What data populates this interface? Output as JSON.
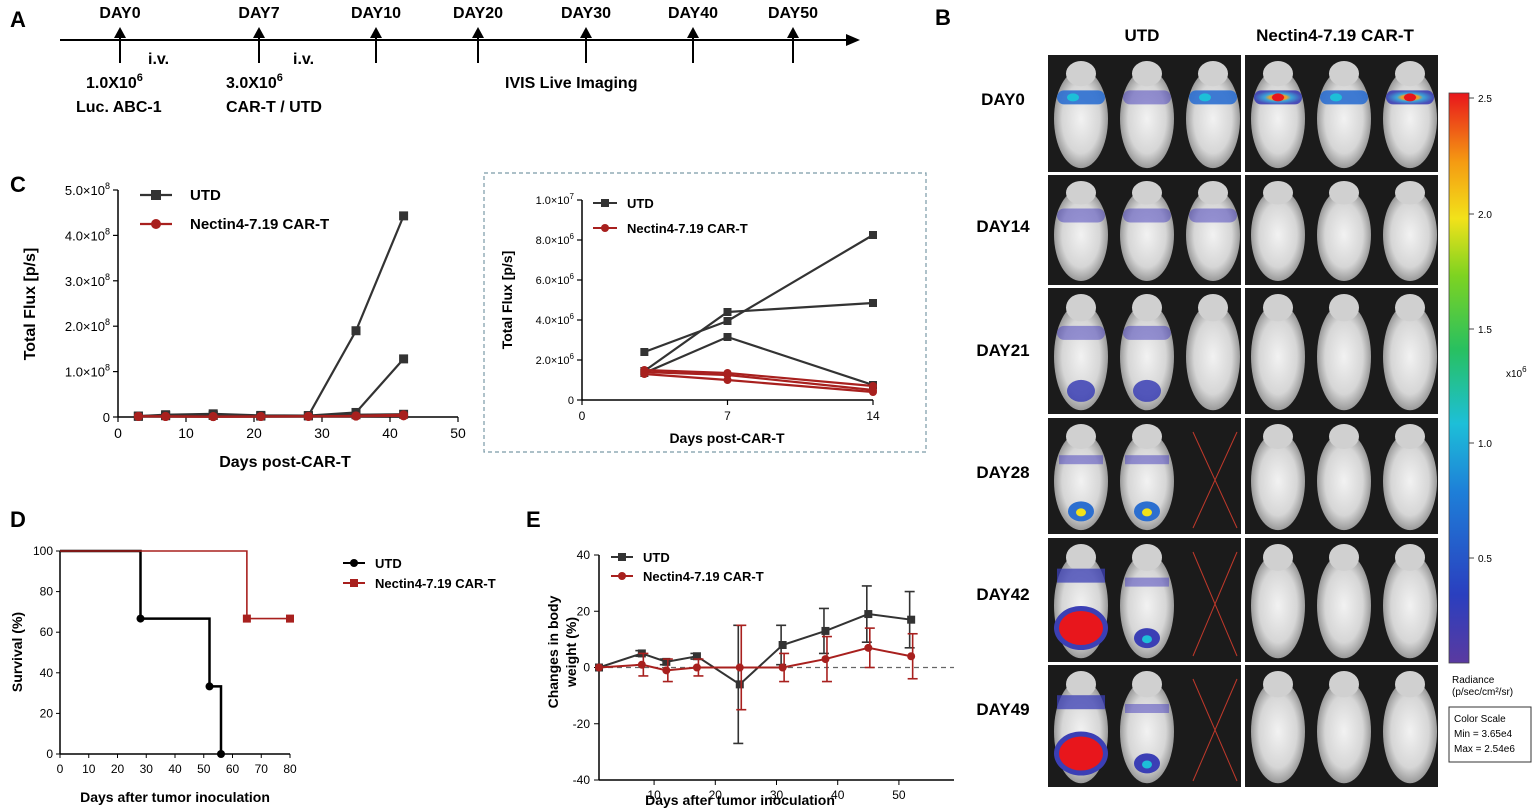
{
  "panel_labels": {
    "a": "A",
    "b": "B",
    "c": "C",
    "d": "D",
    "e": "E"
  },
  "timeline": {
    "days": [
      "DAY0",
      "DAY7",
      "DAY10",
      "DAY20",
      "DAY30",
      "DAY40",
      "DAY50"
    ],
    "iv1": "i.v.",
    "iv2": "i.v.",
    "dose1_num": "1.0X10",
    "dose1_exp": "6",
    "dose1_label": "Luc.  ABC-1",
    "dose2_num": "3.0X10",
    "dose2_exp": "6",
    "dose2_label": "CAR-T / UTD",
    "imaging": "IVIS Live Imaging"
  },
  "imaging_panel": {
    "group_utd": "UTD",
    "group_car": "Nectin4-7.19 CAR-T",
    "days": [
      "DAY0",
      "DAY14",
      "DAY21",
      "DAY28",
      "DAY42",
      "DAY49"
    ],
    "colorbar_ticks": [
      "2.5",
      "2.0",
      "1.5",
      "1.0",
      "0.5"
    ],
    "colorbar_unit": "x10",
    "colorbar_unit_exp": "6",
    "radiance_label": "Radiance",
    "radiance_unit": "(p/sec/cm²/sr)",
    "scale_title": "Color Scale",
    "scale_min": "Min = 3.65e4",
    "scale_max": "Max = 2.54e6"
  },
  "chart_data": [
    {
      "id": "C-main",
      "type": "line",
      "ylabel": "Total Flux [p/s]",
      "xlabel": "Days post-CAR-T",
      "xlim": [
        0,
        50
      ],
      "ylim": [
        0,
        500000000
      ],
      "xticks": [
        "0",
        "10",
        "20",
        "30",
        "40",
        "50"
      ],
      "yticks": [
        "0",
        "1.0×10",
        "2.0×10",
        "3.0×10",
        "4.0×10",
        "5.0×10"
      ],
      "ytick_exp": "8",
      "legend": [
        "UTD",
        "Nectin4-7.19 CAR-T"
      ],
      "series": [
        {
          "name": "UTD",
          "group": "UTD",
          "x": [
            3,
            7,
            14,
            21,
            28,
            35,
            42
          ],
          "y": [
            2000000,
            3000000,
            4000000,
            2500000,
            3000000,
            190000000,
            443000000
          ]
        },
        {
          "name": "UTD",
          "group": "UTD",
          "x": [
            3,
            7,
            14,
            21,
            28,
            35,
            42
          ],
          "y": [
            2000000,
            5000000,
            7000000,
            3500000,
            3000000,
            10000000,
            128000000
          ]
        },
        {
          "name": "UTD",
          "group": "UTD",
          "x": [
            3,
            7,
            14,
            21,
            28,
            35,
            42
          ],
          "y": [
            1500000,
            3000000,
            3500000,
            2000000,
            2500000,
            5000000,
            6000000
          ]
        },
        {
          "name": "Nectin4-7.19 CAR-T",
          "group": "CAR",
          "x": [
            3,
            7,
            14,
            21,
            28,
            35,
            42
          ],
          "y": [
            1300000,
            1200000,
            1000000,
            1200000,
            1500000,
            2500000,
            5000000
          ]
        },
        {
          "name": "Nectin4-7.19 CAR-T",
          "group": "CAR",
          "x": [
            3,
            7,
            14,
            21,
            28,
            35,
            42
          ],
          "y": [
            1200000,
            1000000,
            800000,
            1000000,
            1300000,
            2000000,
            3000000
          ]
        },
        {
          "name": "Nectin4-7.19 CAR-T",
          "group": "CAR",
          "x": [
            3,
            7,
            14,
            21,
            28,
            35,
            42
          ],
          "y": [
            1400000,
            1300000,
            900000,
            1100000,
            1200000,
            1800000,
            2500000
          ]
        }
      ]
    },
    {
      "id": "C-inset",
      "type": "line",
      "ylabel": "Total Flux [p/s]",
      "xlabel": "Days post-CAR-T",
      "xlim": [
        0,
        14
      ],
      "ylim": [
        0,
        10000000
      ],
      "xticks": [
        "0",
        "7",
        "14"
      ],
      "xtick_values": [
        0,
        7,
        14
      ],
      "yticks": [
        "0",
        "2.0×10",
        "4.0×10",
        "6.0×10",
        "8.0×10",
        "1.0×10"
      ],
      "ytick_exps": [
        "",
        "6",
        "6",
        "6",
        "6",
        "7"
      ],
      "legend": [
        "UTD",
        "Nectin4-7.19 CAR-T"
      ],
      "series": [
        {
          "name": "UTD",
          "group": "UTD",
          "x": [
            3,
            7,
            14
          ],
          "y": [
            2400000,
            3950000,
            8250000
          ]
        },
        {
          "name": "UTD",
          "group": "UTD",
          "x": [
            3,
            7,
            14
          ],
          "y": [
            1450000,
            4400000,
            4850000
          ]
        },
        {
          "name": "UTD",
          "group": "UTD",
          "x": [
            3,
            7,
            14
          ],
          "y": [
            1350000,
            3150000,
            750000
          ]
        },
        {
          "name": "Nectin4-7.19 CAR-T",
          "group": "CAR",
          "x": [
            3,
            7,
            14
          ],
          "y": [
            1500000,
            1350000,
            700000
          ]
        },
        {
          "name": "Nectin4-7.19 CAR-T",
          "group": "CAR",
          "x": [
            3,
            7,
            14
          ],
          "y": [
            1400000,
            1250000,
            500000
          ]
        },
        {
          "name": "Nectin4-7.19 CAR-T",
          "group": "CAR",
          "x": [
            3,
            7,
            14
          ],
          "y": [
            1300000,
            1000000,
            400000
          ]
        }
      ]
    },
    {
      "id": "D",
      "type": "step",
      "ylabel": "Survival (%)",
      "xlabel": "Days after tumor inoculation",
      "xlim": [
        0,
        80
      ],
      "ylim": [
        0,
        100
      ],
      "xticks": [
        "0",
        "10",
        "20",
        "30",
        "40",
        "50",
        "60",
        "70",
        "80"
      ],
      "yticks": [
        "0",
        "20",
        "40",
        "60",
        "80",
        "100"
      ],
      "legend": [
        "UTD",
        "Nectin4-7.19 CAR-T"
      ],
      "series": [
        {
          "name": "UTD",
          "x": [
            0,
            28,
            52,
            56
          ],
          "y": [
            100,
            66.7,
            33.3,
            0
          ],
          "markers": [
            [
              28,
              66.7
            ],
            [
              52,
              33.3
            ],
            [
              56,
              0
            ]
          ]
        },
        {
          "name": "Nectin4-7.19 CAR-T",
          "x": [
            0,
            65,
            80
          ],
          "y": [
            100,
            66.7,
            66.7
          ],
          "markers": [
            [
              65,
              66.7
            ],
            [
              80,
              66.7
            ]
          ]
        }
      ]
    },
    {
      "id": "E",
      "type": "line-errorbar",
      "ylabel": "Changes in body weight (%)",
      "xlabel": "Days after tumor inoculation",
      "xlim": [
        1,
        59
      ],
      "ylim": [
        -40,
        40
      ],
      "xticks": [
        "10",
        "20",
        "30",
        "40",
        "50"
      ],
      "yticks": [
        "-40",
        "-20",
        "0",
        "20",
        "40"
      ],
      "legend": [
        "UTD",
        "Nectin4-7.19 CAR-T"
      ],
      "series": [
        {
          "name": "UTD",
          "x": [
            1,
            8,
            12,
            17,
            24,
            31,
            38,
            45,
            52
          ],
          "y": [
            0,
            5,
            2,
            4,
            -6,
            8,
            13,
            19,
            17
          ],
          "err": [
            0,
            1,
            1,
            1,
            21,
            7,
            8,
            10,
            10
          ]
        },
        {
          "name": "Nectin4-7.19 CAR-T",
          "x": [
            1,
            8,
            12,
            17,
            24,
            31,
            38,
            45,
            52
          ],
          "y": [
            0,
            1,
            -1,
            0,
            0,
            0,
            3,
            7,
            4
          ],
          "err": [
            0,
            4,
            4,
            3,
            15,
            5,
            8,
            7,
            8
          ]
        }
      ]
    }
  ]
}
